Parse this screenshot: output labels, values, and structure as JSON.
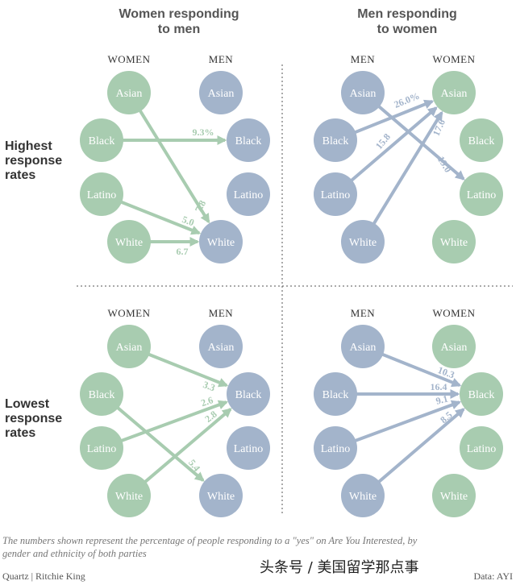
{
  "headers": {
    "left": [
      "Women responding",
      "to men"
    ],
    "right": [
      "Men responding",
      "to women"
    ]
  },
  "row_labels": {
    "top": [
      "Highest",
      "response",
      "rates"
    ],
    "bottom": [
      "Lowest",
      "response",
      "rates"
    ]
  },
  "col_labels": {
    "women": "WOMEN",
    "men": "MEN"
  },
  "ethnicities": [
    "Asian",
    "Black",
    "Latino",
    "White"
  ],
  "colors": {
    "women": "#a8ccb0",
    "men": "#a3b4cb",
    "women_edge": "#a8ccb0",
    "men_edge": "#a3b4cb"
  },
  "panels": [
    {
      "id": "top-left",
      "responder": "women",
      "edges": [
        {
          "from": "Asian",
          "to": "White",
          "value": "7.8"
        },
        {
          "from": "Black",
          "to": "Black",
          "value": "9.3%"
        },
        {
          "from": "Latino",
          "to": "White",
          "value": "5.0"
        },
        {
          "from": "White",
          "to": "White",
          "value": "6.7"
        }
      ]
    },
    {
      "id": "top-right",
      "responder": "men",
      "edges": [
        {
          "from": "Asian",
          "to": "Latino",
          "value": "19.0"
        },
        {
          "from": "Black",
          "to": "Asian",
          "value": "26.0%"
        },
        {
          "from": "Latino",
          "to": "Asian",
          "value": "15.8"
        },
        {
          "from": "White",
          "to": "Asian",
          "value": "17.6"
        }
      ]
    },
    {
      "id": "bottom-left",
      "responder": "women",
      "edges": [
        {
          "from": "Asian",
          "to": "Black",
          "value": "3.3"
        },
        {
          "from": "Black",
          "to": "White",
          "value": "5.4"
        },
        {
          "from": "Latino",
          "to": "Black",
          "value": "2.6"
        },
        {
          "from": "White",
          "to": "Black",
          "value": "2.8"
        }
      ]
    },
    {
      "id": "bottom-right",
      "responder": "men",
      "edges": [
        {
          "from": "Asian",
          "to": "Black",
          "value": "10.3"
        },
        {
          "from": "Black",
          "to": "Black",
          "value": "16.4"
        },
        {
          "from": "Latino",
          "to": "Black",
          "value": "9.1"
        },
        {
          "from": "White",
          "to": "Black",
          "value": "8.5"
        }
      ]
    }
  ],
  "footnote": [
    "The numbers shown represent the percentage of people responding to a \"yes\" on Are You Interested, by",
    "gender and ethnicity of both parties"
  ],
  "credit": "Quartz | Ritchie King",
  "source": "Data: AYI",
  "watermark": "头条号 / 美国留学那点事"
}
